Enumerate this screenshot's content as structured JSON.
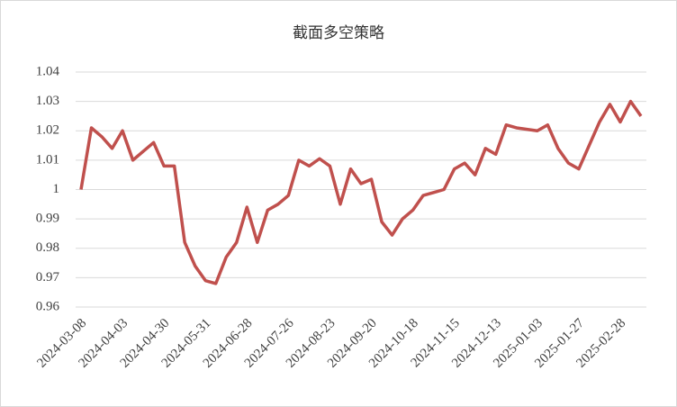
{
  "chart_data": {
    "type": "line",
    "title": "截面多空策略",
    "categories": [
      "2024-03-08",
      null,
      null,
      null,
      "2024-04-03",
      null,
      null,
      null,
      "2024-04-30",
      null,
      null,
      null,
      "2024-05-31",
      null,
      null,
      null,
      "2024-06-28",
      null,
      null,
      null,
      "2024-07-26",
      null,
      null,
      null,
      "2024-08-23",
      null,
      null,
      null,
      "2024-09-20",
      null,
      null,
      null,
      "2024-10-18",
      null,
      null,
      null,
      "2024-11-15",
      null,
      null,
      null,
      "2024-12-13",
      null,
      null,
      null,
      "2025-01-03",
      null,
      null,
      null,
      "2025-01-27",
      null,
      null,
      null,
      "2025-02-28",
      null,
      null
    ],
    "series": [
      {
        "name": "截面多空策略",
        "color": "#c0504d",
        "values": [
          1.0,
          1.021,
          1.018,
          1.014,
          1.02,
          1.01,
          1.013,
          1.016,
          1.008,
          1.008,
          0.982,
          0.974,
          0.969,
          0.968,
          0.977,
          0.982,
          0.994,
          0.982,
          0.993,
          0.995,
          0.998,
          1.01,
          1.008,
          1.0105,
          1.008,
          0.995,
          1.007,
          1.002,
          1.0035,
          0.989,
          0.9845,
          0.99,
          0.993,
          0.998,
          0.999,
          1.0,
          1.007,
          1.009,
          1.005,
          1.014,
          1.012,
          1.022,
          1.021,
          1.0205,
          1.02,
          1.022,
          1.014,
          1.009,
          1.007,
          1.015,
          1.023,
          1.029,
          1.023,
          1.03,
          1.025
        ]
      }
    ],
    "ylim": [
      0.96,
      1.04
    ],
    "yticks": [
      0.96,
      0.97,
      0.98,
      0.99,
      1,
      1.01,
      1.02,
      1.03,
      1.04
    ],
    "grid": true
  }
}
